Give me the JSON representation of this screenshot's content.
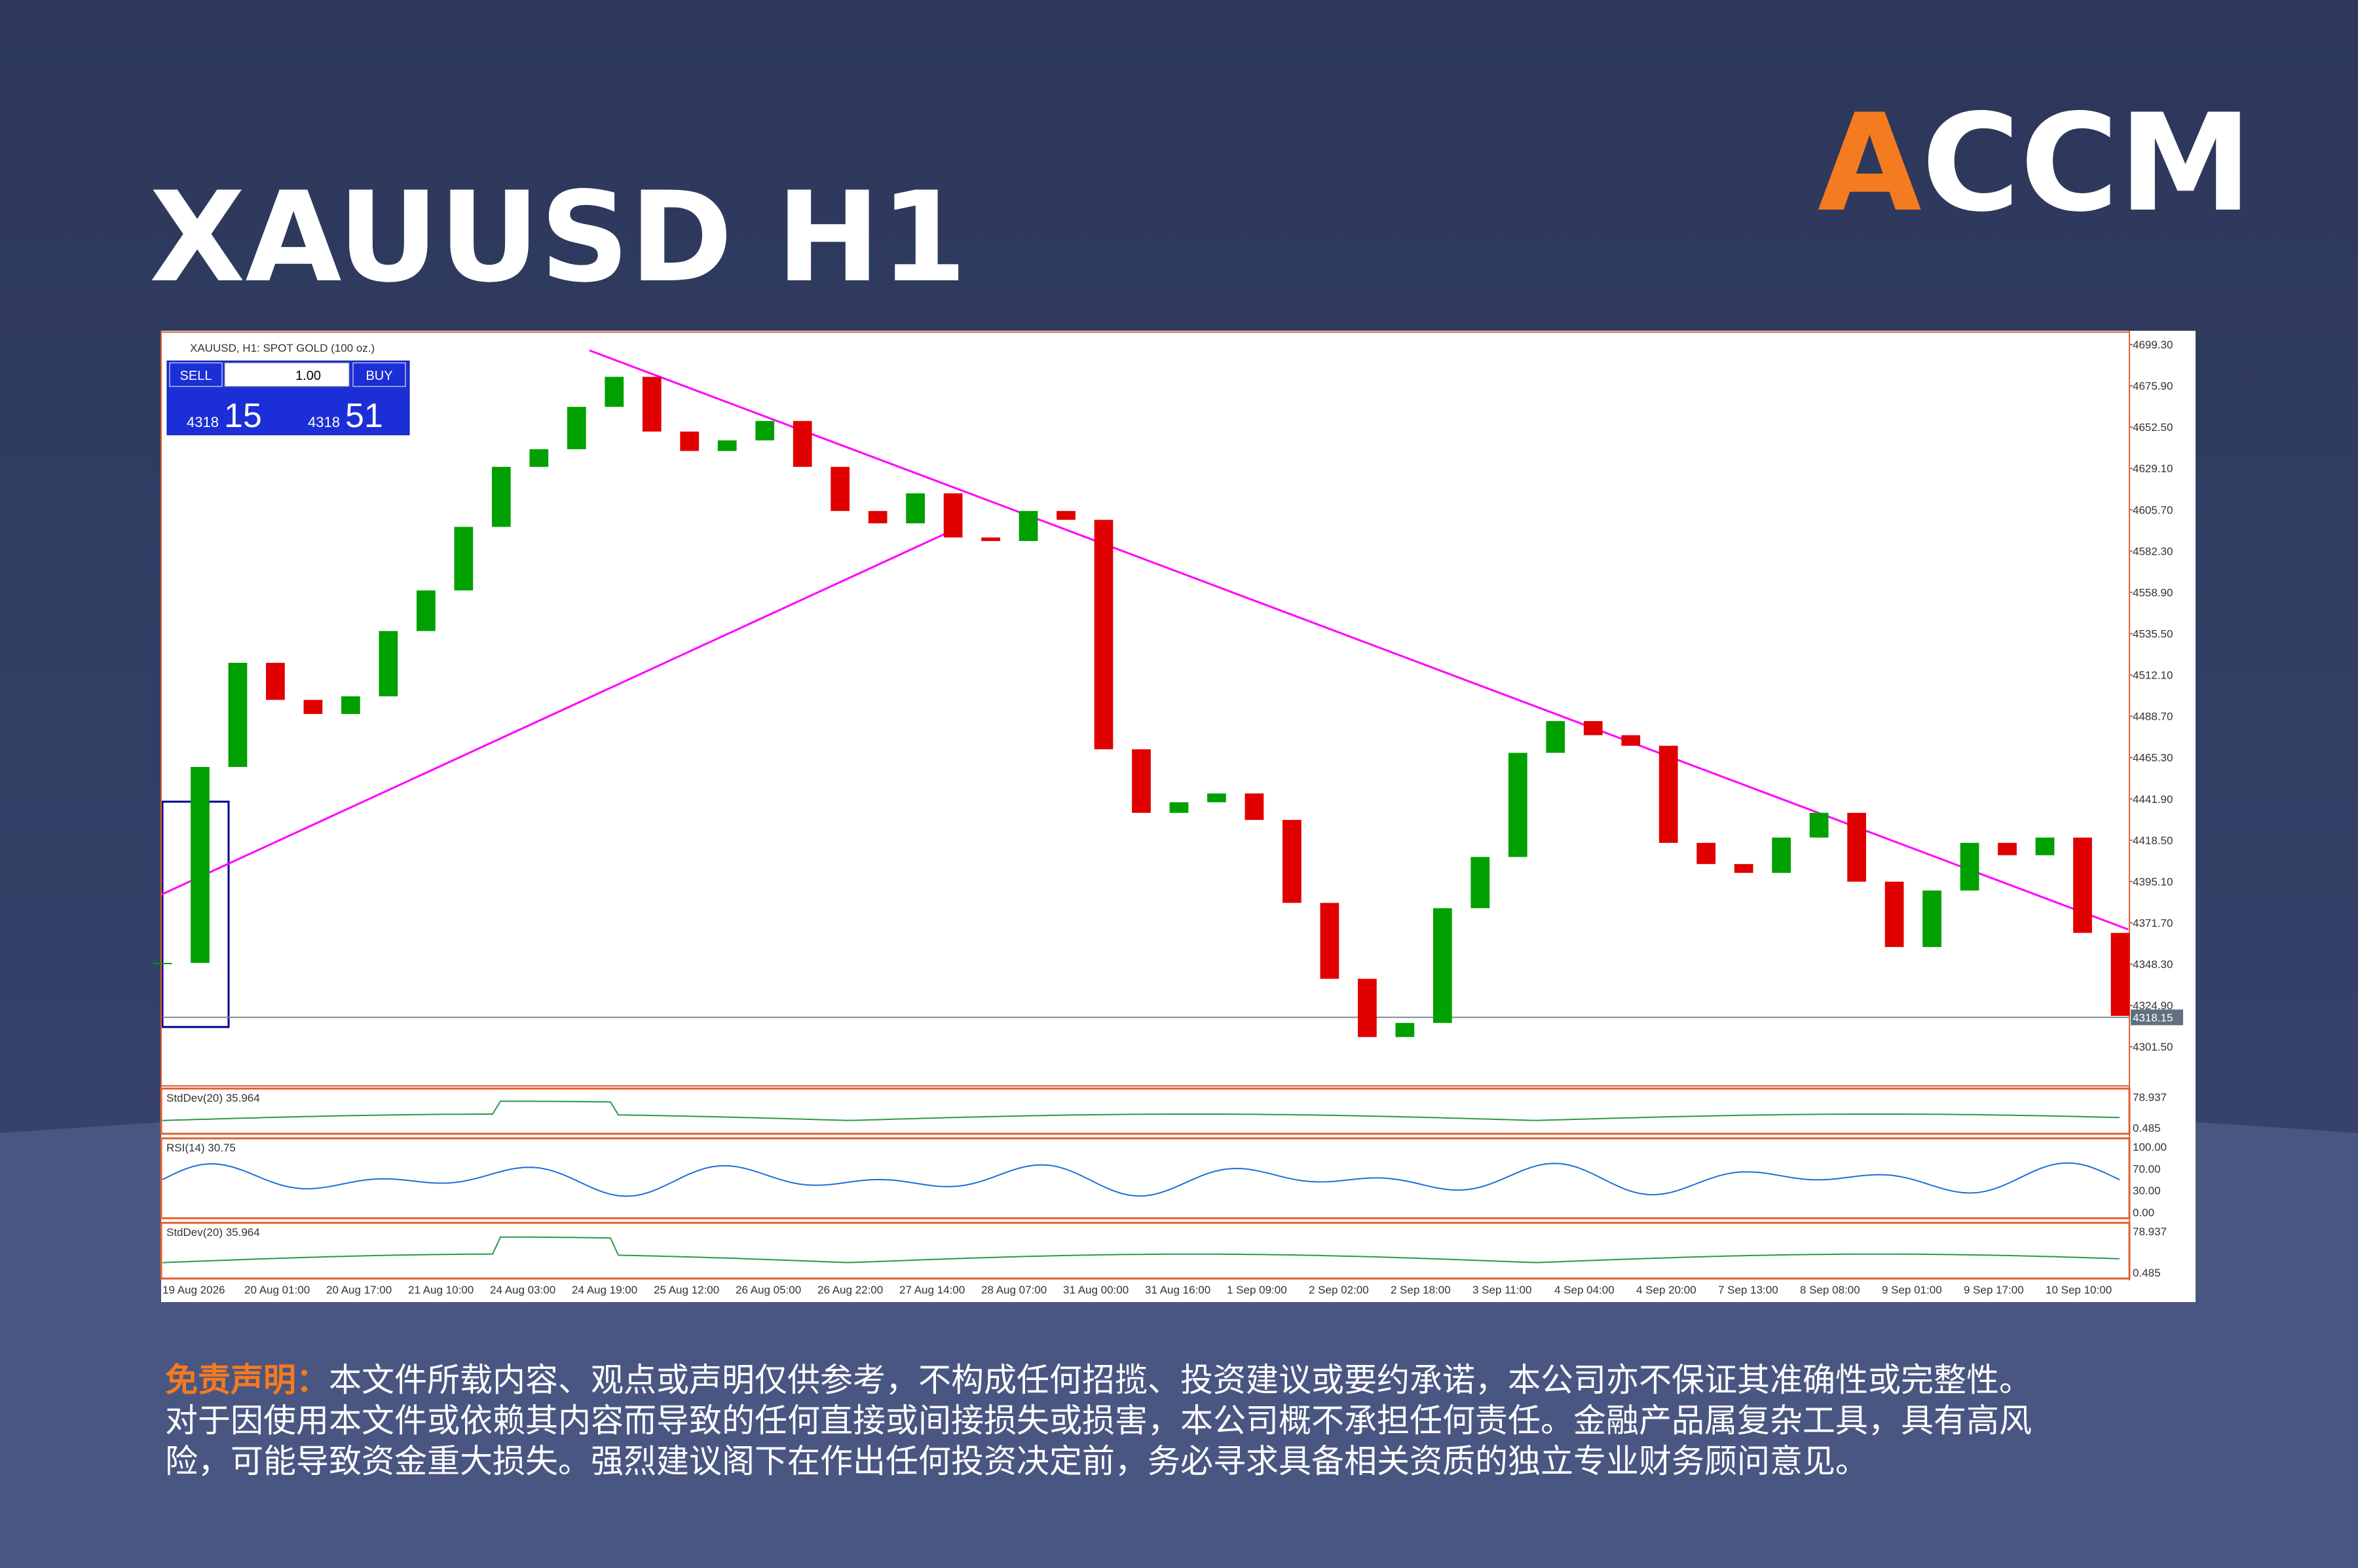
{
  "header": {
    "title": "XAUUSD H1",
    "logo": [
      "A",
      "CCM"
    ]
  },
  "chart": {
    "type": "candlestick",
    "title": "XAUUSD, H1:  SPOT GOLD (100 oz.)",
    "trade_panel": {
      "sell": "SELL",
      "lot": "1.00",
      "buy": "BUY",
      "sell_price": [
        "4318",
        "15"
      ],
      "buy_price": [
        "4318",
        "51"
      ]
    },
    "x_labels": [
      "19 Aug 2026",
      "20 Aug 01:00",
      "20 Aug 17:00",
      "21 Aug 10:00",
      "24 Aug 03:00",
      "24 Aug 19:00",
      "25 Aug 12:00",
      "26 Aug 05:00",
      "26 Aug 22:00",
      "27 Aug 14:00",
      "28 Aug 07:00",
      "31 Aug 00:00",
      "31 Aug 16:00",
      "1 Sep 09:00",
      "2 Sep 02:00",
      "2 Sep 18:00",
      "3 Sep 11:00",
      "4 Sep 04:00",
      "4 Sep 20:00",
      "7 Sep 13:00",
      "8 Sep 08:00",
      "9 Sep 01:00",
      "9 Sep 17:00",
      "10 Sep 10:00"
    ],
    "close": [
      4349,
      4460,
      4519,
      4498,
      4490,
      4500,
      4537,
      4560,
      4596,
      4630,
      4640,
      4664,
      4681,
      4650,
      4639,
      4645,
      4656,
      4630,
      4605,
      4598,
      4615,
      4590,
      4588,
      4605,
      4600,
      4470,
      4434,
      4440,
      4445,
      4430,
      4383,
      4340,
      4307,
      4315,
      4380,
      4409,
      4468,
      4486,
      4478,
      4472,
      4417,
      4405,
      4400,
      4420,
      4434,
      4395,
      4358,
      4390,
      4417,
      4410,
      4420,
      4366,
      4319
    ],
    "up_color": "#00a000",
    "down_color": "#e00000",
    "ylim": [
      4279.3,
      4707.1
    ],
    "yticks": [
      {
        "value": 4699.3,
        "label": "4699.30"
      },
      {
        "value": 4675.9,
        "label": "4675.90"
      },
      {
        "value": 4652.5,
        "label": "4652.50"
      },
      {
        "value": 4629.1,
        "label": "4629.10"
      },
      {
        "value": 4605.7,
        "label": "4605.70"
      },
      {
        "value": 4582.3,
        "label": "4582.30"
      },
      {
        "value": 4558.9,
        "label": "4558.90"
      },
      {
        "value": 4535.5,
        "label": "4535.50"
      },
      {
        "value": 4512.1,
        "label": "4512.10"
      },
      {
        "value": 4488.7,
        "label": "4488.70"
      },
      {
        "value": 4465.3,
        "label": "4465.30"
      },
      {
        "value": 4441.9,
        "label": "4441.90"
      },
      {
        "value": 4418.5,
        "label": "4418.50"
      },
      {
        "value": 4395.1,
        "label": "4395.10"
      },
      {
        "value": 4371.7,
        "label": "4371.70"
      },
      {
        "value": 4348.3,
        "label": "4348.30"
      },
      {
        "value": 4324.9,
        "label": "4324.90"
      },
      {
        "value": 4301.5,
        "label": "4301.50"
      }
    ],
    "current_price": {
      "value": 4318.15,
      "label": "4318.15"
    },
    "indicators": [
      {
        "label": "StdDev(20) 35.964",
        "ticks": [
          "78.937",
          "0.485"
        ]
      },
      {
        "label": "RSI(14) 30.75",
        "ticks": [
          "100.00",
          "70.00",
          "30.00",
          "0.00"
        ]
      },
      {
        "label": "StdDev(20) 35.964",
        "ticks": [
          "78.937",
          "0.485"
        ]
      }
    ]
  },
  "disclaimer": {
    "label": "免责声明：",
    "lines": [
      "本文件所载内容、观点或声明仅供参考，不构成任何招揽、投资建议或要约承诺，本公司亦不保证其准确性或完整性。",
      "对于因使用本文件或依赖其内容而导致的任何直接或间接损失或损害，本公司概不承担任何责任。金融产品属复杂工具，具有高风",
      "险，可能导致资金重大损失。强烈建议阁下在作出任何投资决定前，务必寻求具备相关资质的独立专业财务顾问意见。"
    ]
  }
}
